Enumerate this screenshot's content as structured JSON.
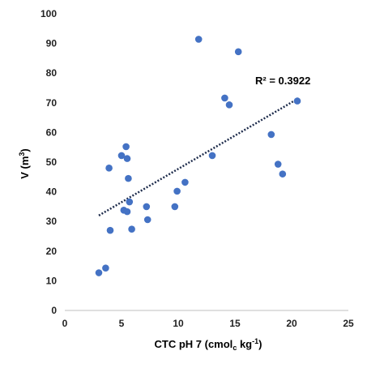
{
  "chart_data": {
    "type": "scatter",
    "title": "",
    "xlabel": {
      "base": "CTC pH 7 (cmol",
      "sub": "c",
      "mid": " kg",
      "sup": "-1",
      "end": ")"
    },
    "ylabel": {
      "base": "V (m",
      "sup": "3",
      "end": ")"
    },
    "xlim": [
      0,
      25
    ],
    "ylim": [
      0,
      100
    ],
    "xticks": [
      0,
      5,
      10,
      15,
      20,
      25
    ],
    "yticks": [
      0,
      10,
      20,
      30,
      40,
      50,
      60,
      70,
      80,
      90,
      100
    ],
    "grid": false,
    "legend": "none",
    "marker_color": "#4472C4",
    "trendline_color": "#1F2D4D",
    "points": [
      {
        "x": 3.0,
        "y": 12.7
      },
      {
        "x": 3.6,
        "y": 14.3
      },
      {
        "x": 3.9,
        "y": 48.0
      },
      {
        "x": 4.0,
        "y": 27.0
      },
      {
        "x": 5.0,
        "y": 52.2
      },
      {
        "x": 5.2,
        "y": 33.8
      },
      {
        "x": 5.4,
        "y": 55.2
      },
      {
        "x": 5.5,
        "y": 51.2
      },
      {
        "x": 5.5,
        "y": 33.3
      },
      {
        "x": 5.6,
        "y": 44.5
      },
      {
        "x": 5.7,
        "y": 36.6
      },
      {
        "x": 5.9,
        "y": 27.4
      },
      {
        "x": 7.2,
        "y": 35.0
      },
      {
        "x": 7.3,
        "y": 30.6
      },
      {
        "x": 9.7,
        "y": 35.0
      },
      {
        "x": 9.9,
        "y": 40.2
      },
      {
        "x": 10.6,
        "y": 43.2
      },
      {
        "x": 11.8,
        "y": 91.4
      },
      {
        "x": 13.0,
        "y": 52.2
      },
      {
        "x": 14.1,
        "y": 71.6
      },
      {
        "x": 14.5,
        "y": 69.3
      },
      {
        "x": 15.3,
        "y": 87.2
      },
      {
        "x": 18.2,
        "y": 59.3
      },
      {
        "x": 18.8,
        "y": 49.3
      },
      {
        "x": 19.2,
        "y": 46.0
      },
      {
        "x": 20.5,
        "y": 70.6
      }
    ],
    "trendline": {
      "type": "linear",
      "x": [
        3.0,
        20.6
      ],
      "y": [
        32.0,
        71.5
      ]
    },
    "annotation": "R² = 0.3922"
  }
}
